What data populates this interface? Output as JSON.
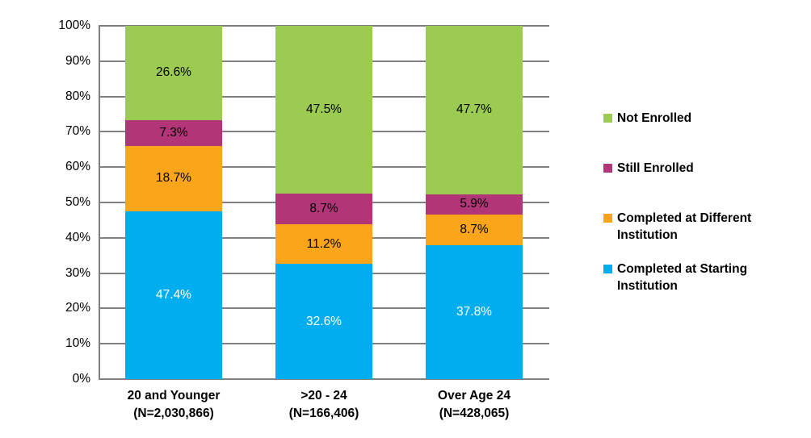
{
  "chart_data": {
    "type": "bar",
    "stacked": true,
    "title": "",
    "xlabel": "",
    "ylabel": "",
    "ylim": [
      0,
      100
    ],
    "grid": true,
    "gridline_color": "#808080",
    "background": "#FFFFFF",
    "y_ticks": [
      "0%",
      "10%",
      "20%",
      "30%",
      "40%",
      "50%",
      "60%",
      "70%",
      "80%",
      "90%",
      "100%"
    ],
    "categories": [
      {
        "line1": "20 and Younger",
        "line2": "(N=2,030,866)"
      },
      {
        "line1": ">20 - 24",
        "line2": "(N=166,406)"
      },
      {
        "line1": "Over Age 24",
        "line2": "(N=428,065)"
      }
    ],
    "series": [
      {
        "name": "Completed at Starting Institution",
        "color": "#00AEEF",
        "label_color": "#FFFFFF",
        "values": [
          47.4,
          32.6,
          37.8
        ],
        "labels": [
          "47.4%",
          "32.6%",
          "37.8%"
        ]
      },
      {
        "name": "Completed at Different Institution",
        "color": "#FAA51A",
        "label_color": "#000000",
        "values": [
          18.7,
          11.2,
          8.7
        ],
        "labels": [
          "18.7%",
          "11.2%",
          "8.7%"
        ]
      },
      {
        "name": "Still Enrolled",
        "color": "#B23677",
        "label_color": "#000000",
        "values": [
          7.3,
          8.7,
          5.9
        ],
        "labels": [
          "7.3%",
          "8.7%",
          "5.9%"
        ]
      },
      {
        "name": "Not Enrolled",
        "color": "#9BCB50",
        "label_color": "#000000",
        "values": [
          26.6,
          47.5,
          47.7
        ],
        "labels": [
          "26.6%",
          "47.5%",
          "47.7%"
        ]
      }
    ],
    "legend": {
      "position": "right",
      "entries": [
        {
          "series": "Not Enrolled",
          "color": "#9BCB50",
          "lines": [
            "Not Enrolled"
          ]
        },
        {
          "series": "Still Enrolled",
          "color": "#B23677",
          "lines": [
            "Still Enrolled"
          ]
        },
        {
          "series": "Completed at Different Institution",
          "color": "#FAA51A",
          "lines": [
            "Completed at Different",
            "Institution"
          ]
        },
        {
          "series": "Completed at Starting Institution",
          "color": "#00AEEF",
          "lines": [
            "Completed at Starting",
            "Institution"
          ]
        }
      ]
    }
  }
}
